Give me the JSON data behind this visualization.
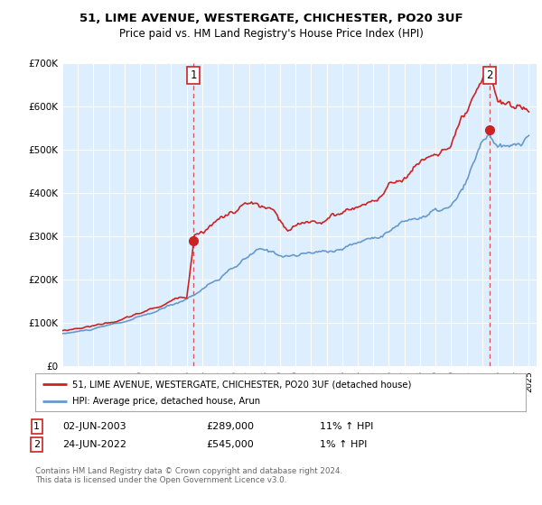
{
  "title": "51, LIME AVENUE, WESTERGATE, CHICHESTER, PO20 3UF",
  "subtitle": "Price paid vs. HM Land Registry's House Price Index (HPI)",
  "legend_label_red": "51, LIME AVENUE, WESTERGATE, CHICHESTER, PO20 3UF (detached house)",
  "legend_label_blue": "HPI: Average price, detached house, Arun",
  "annotation1_date": "02-JUN-2003",
  "annotation1_price": "£289,000",
  "annotation1_hpi": "11% ↑ HPI",
  "annotation2_date": "24-JUN-2022",
  "annotation2_price": "£545,000",
  "annotation2_hpi": "1% ↑ HPI",
  "footer": "Contains HM Land Registry data © Crown copyright and database right 2024.\nThis data is licensed under the Open Government Licence v3.0.",
  "ylim": [
    0,
    700000
  ],
  "yticks": [
    0,
    100000,
    200000,
    300000,
    400000,
    500000,
    600000,
    700000
  ],
  "ytick_labels": [
    "£0",
    "£100K",
    "£200K",
    "£300K",
    "£400K",
    "£500K",
    "£600K",
    "£700K"
  ],
  "sale1_x": 2003.42,
  "sale1_y": 289000,
  "sale2_x": 2022.48,
  "sale2_y": 545000,
  "xmin": 1995,
  "xmax": 2025.5,
  "red_color": "#cc2222",
  "blue_color": "#6699cc",
  "bg_color": "#ddeeff",
  "grid_color": "#ffffff",
  "annotation_box_color": "#cc2222"
}
